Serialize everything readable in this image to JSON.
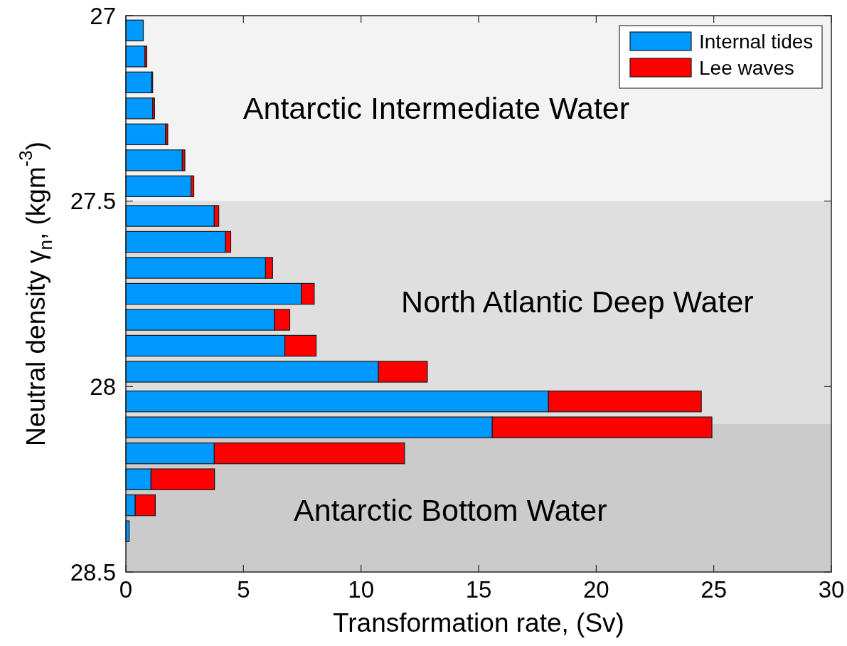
{
  "chart_data": {
    "type": "bar",
    "orientation": "horizontal",
    "stacked": true,
    "xlabel": "Transformation rate, (Sv)",
    "ylabel": "Neutral density γ$_{n}$, (kgm$^{-3}$)",
    "x": [
      27.04,
      27.11,
      27.18,
      27.25,
      27.32,
      27.39,
      27.46,
      27.54,
      27.61,
      27.68,
      27.75,
      27.82,
      27.89,
      27.96,
      28.04,
      28.11,
      28.18,
      28.25,
      28.32,
      28.39
    ],
    "series": [
      {
        "name": "Internal tides",
        "color": "#0099ff",
        "values": [
          0.74,
          0.81,
          1.1,
          1.14,
          1.69,
          2.4,
          2.77,
          3.76,
          4.24,
          5.94,
          7.46,
          6.32,
          6.76,
          10.74,
          17.97,
          15.58,
          3.76,
          1.07,
          0.4,
          0.14
        ]
      },
      {
        "name": "Lee waves",
        "color": "#ff0000",
        "values": [
          null,
          0.08,
          0.04,
          0.08,
          0.09,
          0.11,
          0.12,
          0.19,
          0.22,
          0.3,
          0.55,
          0.65,
          1.33,
          2.08,
          6.5,
          9.34,
          8.09,
          2.7,
          0.85,
          null
        ]
      }
    ],
    "xlim": [
      0,
      30
    ],
    "xticks": [
      0,
      5,
      10,
      15,
      20,
      25,
      30
    ],
    "ylim": [
      28.5,
      27
    ],
    "yticks": [
      27,
      27.5,
      28,
      28.5
    ],
    "bands": [
      {
        "axis": "y",
        "from": 27,
        "to": 27.5,
        "label": "Antarctic Intermediate Water",
        "color": "#f3f3f3"
      },
      {
        "axis": "y",
        "from": 27.5,
        "to": 28.1,
        "label": "North Atlantic Deep Water",
        "color": "#dfdfdf"
      },
      {
        "axis": "y",
        "from": 28.1,
        "to": 28.5,
        "label": "Antarctic Bottom Water",
        "color": "#cbcbcb"
      }
    ],
    "legend": "top right"
  }
}
